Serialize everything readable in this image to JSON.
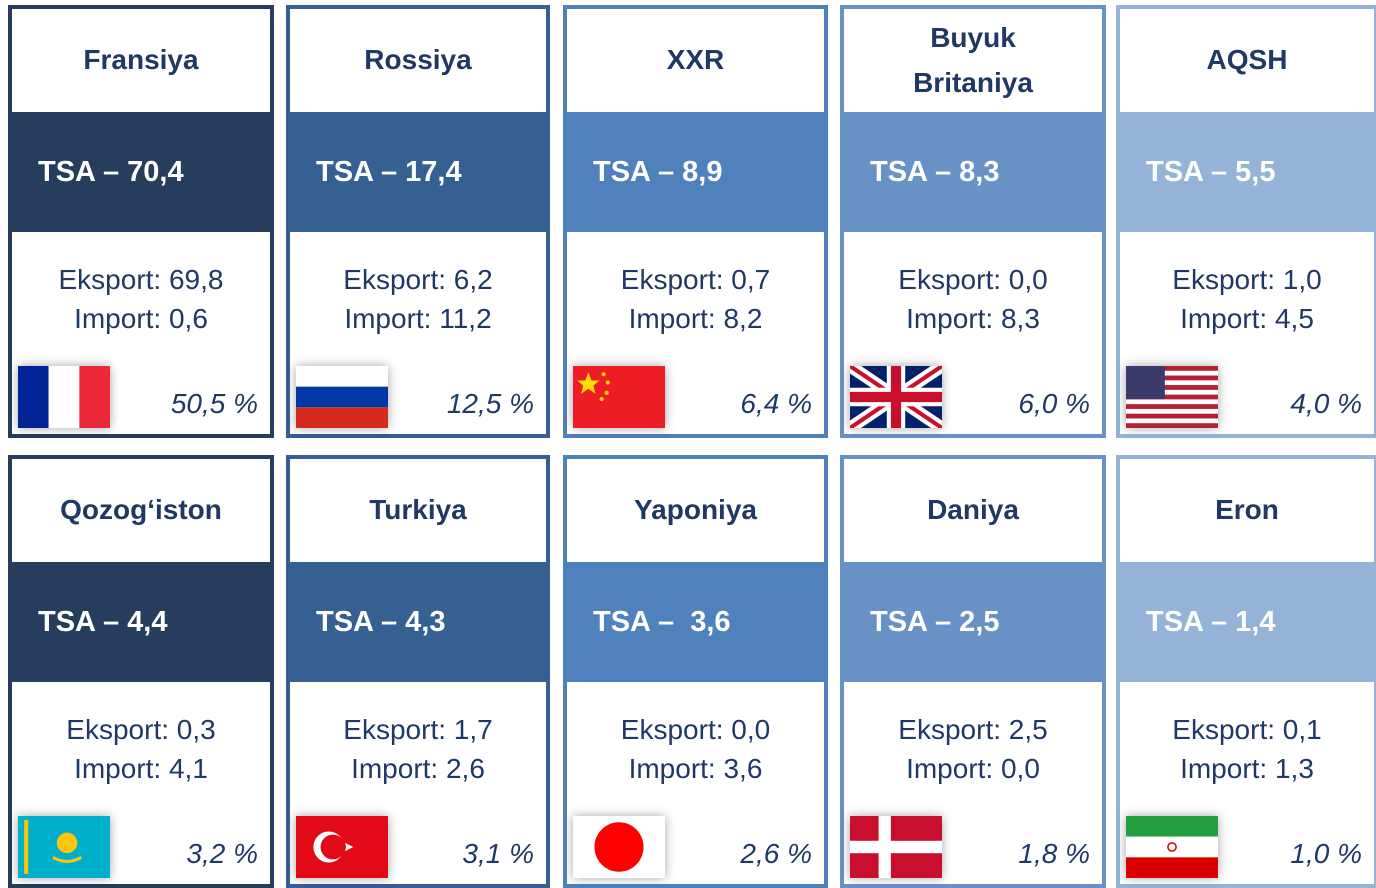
{
  "cards": [
    {
      "country": "Fransiya",
      "tsa": "TSA – 70,4",
      "export": "Eksport: 69,8",
      "import": "Import: 0,6",
      "share": "50,5 %"
    },
    {
      "country": "Rossiya",
      "tsa": "TSA – 17,4",
      "export": "Eksport: 6,2",
      "import": "Import: 11,2",
      "share": "12,5 %"
    },
    {
      "country": "XXR",
      "tsa": "TSA – 8,9",
      "export": "Eksport: 0,7",
      "import": "Import: 8,2",
      "share": "6,4 %"
    },
    {
      "country": "Buyuk Britaniya",
      "tsa": "TSA – 8,3",
      "export": "Eksport: 0,0",
      "import": "Import: 8,3",
      "share": "6,0 %"
    },
    {
      "country": "AQSH",
      "tsa": "TSA – 5,5",
      "export": "Eksport: 1,0",
      "import": "Import: 4,5",
      "share": "4,0 %"
    },
    {
      "country": "Qozog‘iston",
      "tsa": "TSA – 4,4",
      "export": "Eksport: 0,3",
      "import": "Import: 4,1",
      "share": "3,2 %"
    },
    {
      "country": "Turkiya",
      "tsa": "TSA – 4,3",
      "export": "Eksport: 1,7",
      "import": "Import: 2,6",
      "share": "3,1 %"
    },
    {
      "country": "Yaponiya",
      "tsa": "TSA –  3,6",
      "export": "Eksport: 0,0",
      "import": "Import: 3,6",
      "share": "2,6 %"
    },
    {
      "country": "Daniya",
      "tsa": "TSA – 2,5",
      "export": "Eksport: 2,5",
      "import": "Import: 0,0",
      "share": "1,8 %"
    },
    {
      "country": "Eron",
      "tsa": "TSA – 1,4",
      "export": "Eksport: 0,1",
      "import": "Import: 1,3",
      "share": "1,0 %"
    }
  ]
}
